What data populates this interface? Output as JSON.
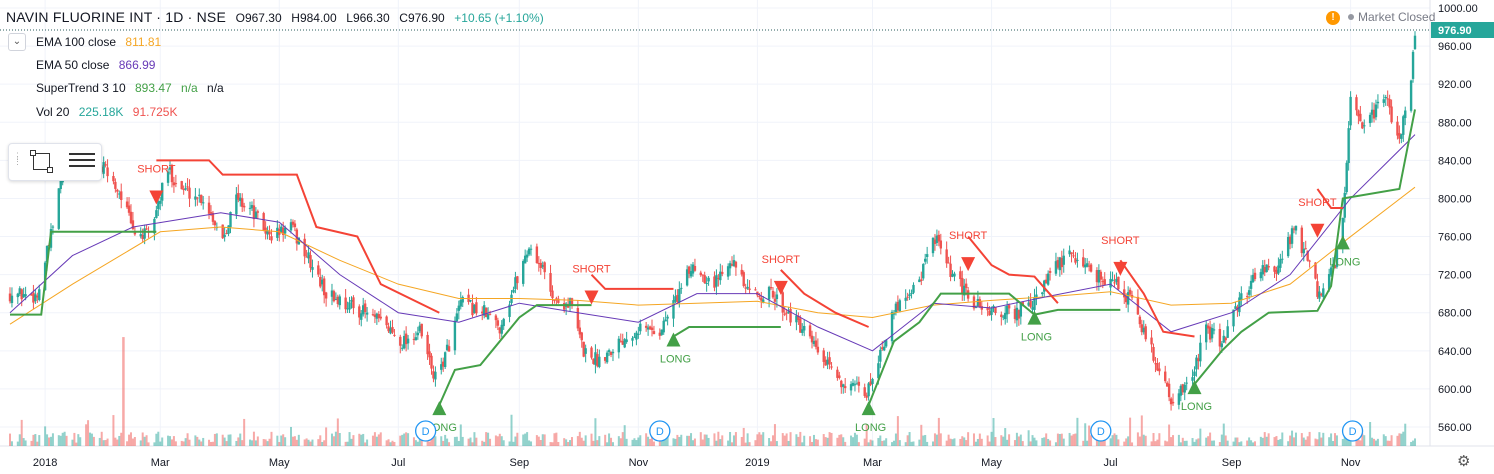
{
  "header": {
    "symbol_title": "NAVIN FLUORINE INT · 1D · NSE",
    "ohlc": {
      "open": "O967.30",
      "high": "H984.00",
      "low": "L966.30",
      "close": "C976.90",
      "change": "+10.65 (+1.10%)"
    },
    "market_status": "Market Closed"
  },
  "indicators": [
    {
      "label": "EMA 100 close",
      "value": "811.81",
      "value2": "",
      "value3": "",
      "color": "#f5a623"
    },
    {
      "label": "EMA 50 close",
      "value": "866.99",
      "value2": "",
      "value3": "",
      "color": "#673ab7"
    },
    {
      "label": "SuperTrend 3 10",
      "value": "893.47",
      "value2": "n/a",
      "value3": "n/a",
      "color": "#43a047"
    },
    {
      "label": "Vol 20",
      "value": "225.18K",
      "value2": "91.725K",
      "value3": "",
      "color": "#26a69a"
    }
  ],
  "colors": {
    "up": "#26a69a",
    "down": "#ef5350",
    "supertrend_up": "#43a047",
    "supertrend_down": "#f44336",
    "ema100": "#f5a623",
    "ema50": "#673ab7",
    "price_line": "#2a5b5b",
    "grid": "#f0f3fa"
  },
  "chart_data": {
    "type": "candlestick",
    "title": "NAVIN FLUORINE INT · 1D · NSE",
    "y_axis": {
      "min": 545,
      "max": 1005,
      "ticks": [
        560,
        600,
        640,
        680,
        720,
        760,
        800,
        840,
        880,
        920,
        960,
        1000
      ],
      "tick_labels": [
        "560.00",
        "600.00",
        "640.00",
        "680.00",
        "720.00",
        "760.00",
        "800.00",
        "840.00",
        "880.00",
        "920.00",
        "960.00",
        "1000.00"
      ]
    },
    "x_axis": {
      "min": "2017-12-14",
      "max": "2019-12-04",
      "ticks": [
        {
          "date": "2018-01-01",
          "label": "2018"
        },
        {
          "date": "2018-03-01",
          "label": "Mar"
        },
        {
          "date": "2018-05-01",
          "label": "May"
        },
        {
          "date": "2018-07-01",
          "label": "Jul"
        },
        {
          "date": "2018-09-01",
          "label": "Sep"
        },
        {
          "date": "2018-11-01",
          "label": "Nov"
        },
        {
          "date": "2019-01-01",
          "label": "2019"
        },
        {
          "date": "2019-03-01",
          "label": "Mar"
        },
        {
          "date": "2019-05-01",
          "label": "May"
        },
        {
          "date": "2019-07-01",
          "label": "Jul"
        },
        {
          "date": "2019-09-01",
          "label": "Sep"
        },
        {
          "date": "2019-11-01",
          "label": "Nov"
        }
      ]
    },
    "last_price": 976.9,
    "last_price_label": "976.90",
    "price_path": [
      [
        "2017-12-14",
        700
      ],
      [
        "2017-12-28",
        698
      ],
      [
        "2018-01-04",
        760
      ],
      [
        "2018-01-11",
        840
      ],
      [
        "2018-01-18",
        835
      ],
      [
        "2018-02-01",
        830
      ],
      [
        "2018-02-10",
        800
      ],
      [
        "2018-02-15",
        765
      ],
      [
        "2018-02-23",
        760
      ],
      [
        "2018-03-05",
        830
      ],
      [
        "2018-03-12",
        810
      ],
      [
        "2018-03-23",
        800
      ],
      [
        "2018-04-02",
        760
      ],
      [
        "2018-04-09",
        800
      ],
      [
        "2018-04-16",
        790
      ],
      [
        "2018-04-26",
        760
      ],
      [
        "2018-05-07",
        770
      ],
      [
        "2018-05-15",
        740
      ],
      [
        "2018-05-25",
        700
      ],
      [
        "2018-06-04",
        690
      ],
      [
        "2018-06-14",
        680
      ],
      [
        "2018-06-25",
        665
      ],
      [
        "2018-07-03",
        650
      ],
      [
        "2018-07-12",
        660
      ],
      [
        "2018-07-20",
        610
      ],
      [
        "2018-07-26",
        640
      ],
      [
        "2018-08-02",
        690
      ],
      [
        "2018-08-14",
        680
      ],
      [
        "2018-08-22",
        665
      ],
      [
        "2018-08-28",
        700
      ],
      [
        "2018-09-06",
        750
      ],
      [
        "2018-09-12",
        730
      ],
      [
        "2018-09-20",
        690
      ],
      [
        "2018-09-27",
        690
      ],
      [
        "2018-10-04",
        640
      ],
      [
        "2018-10-11",
        630
      ],
      [
        "2018-10-22",
        650
      ],
      [
        "2018-11-01",
        665
      ],
      [
        "2018-11-12",
        660
      ],
      [
        "2018-11-19",
        690
      ],
      [
        "2018-11-29",
        730
      ],
      [
        "2018-12-10",
        710
      ],
      [
        "2018-12-18",
        740
      ],
      [
        "2018-12-27",
        700
      ],
      [
        "2019-01-08",
        700
      ],
      [
        "2019-01-17",
        680
      ],
      [
        "2019-01-28",
        650
      ],
      [
        "2019-02-07",
        620
      ],
      [
        "2019-02-18",
        600
      ],
      [
        "2019-02-26",
        595
      ],
      [
        "2019-03-05",
        640
      ],
      [
        "2019-03-14",
        690
      ],
      [
        "2019-03-25",
        715
      ],
      [
        "2019-04-02",
        760
      ],
      [
        "2019-04-10",
        720
      ],
      [
        "2019-04-22",
        690
      ],
      [
        "2019-05-02",
        680
      ],
      [
        "2019-05-14",
        680
      ],
      [
        "2019-05-23",
        690
      ],
      [
        "2019-06-03",
        730
      ],
      [
        "2019-06-12",
        740
      ],
      [
        "2019-06-24",
        720
      ],
      [
        "2019-07-04",
        710
      ],
      [
        "2019-07-12",
        690
      ],
      [
        "2019-07-22",
        640
      ],
      [
        "2019-08-01",
        590
      ],
      [
        "2019-08-09",
        600
      ],
      [
        "2019-08-19",
        660
      ],
      [
        "2019-08-27",
        650
      ],
      [
        "2019-09-05",
        690
      ],
      [
        "2019-09-16",
        730
      ],
      [
        "2019-09-24",
        720
      ],
      [
        "2019-10-03",
        770
      ],
      [
        "2019-10-09",
        740
      ],
      [
        "2019-10-16",
        695
      ],
      [
        "2019-10-24",
        730
      ],
      [
        "2019-10-28",
        780
      ],
      [
        "2019-11-01",
        900
      ],
      [
        "2019-11-08",
        870
      ],
      [
        "2019-11-18",
        910
      ],
      [
        "2019-11-26",
        860
      ],
      [
        "2019-12-02",
        930
      ],
      [
        "2019-12-04",
        976.9
      ]
    ],
    "ema100": [
      [
        "2017-12-14",
        668
      ],
      [
        "2018-01-15",
        710
      ],
      [
        "2018-03-01",
        765
      ],
      [
        "2018-04-01",
        770
      ],
      [
        "2018-05-01",
        765
      ],
      [
        "2018-06-01",
        735
      ],
      [
        "2018-07-01",
        710
      ],
      [
        "2018-08-01",
        695
      ],
      [
        "2018-09-01",
        695
      ],
      [
        "2018-10-01",
        693
      ],
      [
        "2018-11-01",
        688
      ],
      [
        "2018-12-01",
        690
      ],
      [
        "2019-01-01",
        692
      ],
      [
        "2019-02-01",
        680
      ],
      [
        "2019-03-01",
        675
      ],
      [
        "2019-04-01",
        688
      ],
      [
        "2019-05-01",
        693
      ],
      [
        "2019-06-01",
        697
      ],
      [
        "2019-07-01",
        702
      ],
      [
        "2019-08-01",
        688
      ],
      [
        "2019-09-01",
        690
      ],
      [
        "2019-10-01",
        710
      ],
      [
        "2019-11-01",
        760
      ],
      [
        "2019-12-04",
        811.81
      ]
    ],
    "ema50": [
      [
        "2017-12-14",
        680
      ],
      [
        "2018-01-15",
        740
      ],
      [
        "2018-02-15",
        770
      ],
      [
        "2018-04-01",
        785
      ],
      [
        "2018-05-01",
        775
      ],
      [
        "2018-06-01",
        720
      ],
      [
        "2018-07-01",
        680
      ],
      [
        "2018-08-01",
        670
      ],
      [
        "2018-09-01",
        690
      ],
      [
        "2018-10-01",
        680
      ],
      [
        "2018-11-01",
        670
      ],
      [
        "2018-12-01",
        700
      ],
      [
        "2019-01-01",
        700
      ],
      [
        "2019-02-01",
        665
      ],
      [
        "2019-03-01",
        640
      ],
      [
        "2019-04-01",
        690
      ],
      [
        "2019-05-01",
        685
      ],
      [
        "2019-06-01",
        698
      ],
      [
        "2019-07-01",
        710
      ],
      [
        "2019-08-01",
        660
      ],
      [
        "2019-09-01",
        680
      ],
      [
        "2019-10-01",
        720
      ],
      [
        "2019-11-01",
        800
      ],
      [
        "2019-12-04",
        866.99
      ]
    ],
    "supertrend_up": [
      [
        [
          "2017-12-14",
          678
        ],
        [
          "2017-12-30",
          678
        ],
        [
          "2018-01-04",
          765
        ],
        [
          "2018-02-27",
          765
        ]
      ],
      [
        [
          "2018-07-22",
          583
        ],
        [
          "2018-07-30",
          620
        ],
        [
          "2018-08-12",
          625
        ],
        [
          "2018-08-20",
          645
        ],
        [
          "2018-09-01",
          675
        ],
        [
          "2018-09-10",
          688
        ],
        [
          "2018-10-08",
          688
        ]
      ],
      [
        [
          "2018-11-19",
          655
        ],
        [
          "2018-11-27",
          665
        ],
        [
          "2019-01-13",
          665
        ]
      ],
      [
        [
          "2019-02-27",
          583
        ],
        [
          "2019-03-12",
          650
        ],
        [
          "2019-03-25",
          670
        ],
        [
          "2019-04-05",
          700
        ],
        [
          "2019-05-10",
          700
        ],
        [
          "2019-05-23",
          678
        ],
        [
          "2019-06-04",
          683
        ],
        [
          "2019-07-06",
          683
        ]
      ],
      [
        [
          "2019-08-13",
          605
        ],
        [
          "2019-08-27",
          640
        ],
        [
          "2019-09-06",
          660
        ],
        [
          "2019-09-20",
          680
        ],
        [
          "2019-10-15",
          682
        ],
        [
          "2019-10-22",
          708
        ],
        [
          "2019-10-28",
          800
        ],
        [
          "2019-11-26",
          810
        ],
        [
          "2019-12-04",
          893.47
        ]
      ]
    ],
    "supertrend_down": [
      [
        [
          "2018-02-27",
          840
        ],
        [
          "2018-03-26",
          840
        ],
        [
          "2018-04-02",
          825
        ],
        [
          "2018-05-10",
          825
        ],
        [
          "2018-05-20",
          770
        ],
        [
          "2018-06-10",
          760
        ],
        [
          "2018-06-22",
          710
        ],
        [
          "2018-07-22",
          680
        ]
      ],
      [
        [
          "2018-10-08",
          720
        ],
        [
          "2018-10-15",
          705
        ],
        [
          "2018-11-19",
          705
        ]
      ],
      [
        [
          "2019-01-13",
          725
        ],
        [
          "2019-01-25",
          700
        ],
        [
          "2019-02-10",
          680
        ],
        [
          "2019-02-27",
          665
        ]
      ],
      [
        [
          "2019-04-19",
          760
        ],
        [
          "2019-05-01",
          730
        ],
        [
          "2019-05-10",
          720
        ],
        [
          "2019-05-23",
          718
        ],
        [
          "2019-06-04",
          690
        ]
      ],
      [
        [
          "2019-07-06",
          735
        ],
        [
          "2019-07-18",
          700
        ],
        [
          "2019-07-28",
          660
        ],
        [
          "2019-08-13",
          655
        ]
      ],
      [
        [
          "2019-10-15",
          810
        ],
        [
          "2019-10-22",
          790
        ],
        [
          "2019-10-28",
          790
        ]
      ]
    ],
    "signals": [
      {
        "date": "2018-02-27",
        "price": 800,
        "type": "SHORT"
      },
      {
        "date": "2018-07-22",
        "price": 583,
        "type": "LONG"
      },
      {
        "date": "2018-10-08",
        "price": 695,
        "type": "SHORT"
      },
      {
        "date": "2018-11-19",
        "price": 655,
        "type": "LONG"
      },
      {
        "date": "2019-01-13",
        "price": 705,
        "type": "SHORT"
      },
      {
        "date": "2019-02-27",
        "price": 583,
        "type": "LONG"
      },
      {
        "date": "2019-04-19",
        "price": 730,
        "type": "SHORT"
      },
      {
        "date": "2019-05-23",
        "price": 678,
        "type": "LONG"
      },
      {
        "date": "2019-07-06",
        "price": 725,
        "type": "SHORT"
      },
      {
        "date": "2019-08-13",
        "price": 605,
        "type": "LONG"
      },
      {
        "date": "2019-10-15",
        "price": 765,
        "type": "SHORT"
      },
      {
        "date": "2019-10-28",
        "price": 757,
        "type": "LONG"
      }
    ],
    "dividend_markers": [
      {
        "date": "2018-07-15",
        "label": "D"
      },
      {
        "date": "2018-11-12",
        "label": "D"
      },
      {
        "date": "2019-06-26",
        "label": "D"
      },
      {
        "date": "2019-11-02",
        "label": "D"
      }
    ],
    "volume_spikes": [
      {
        "date": "2018-02-10",
        "value": 2400,
        "up": false
      }
    ],
    "volume_max": 2600
  }
}
